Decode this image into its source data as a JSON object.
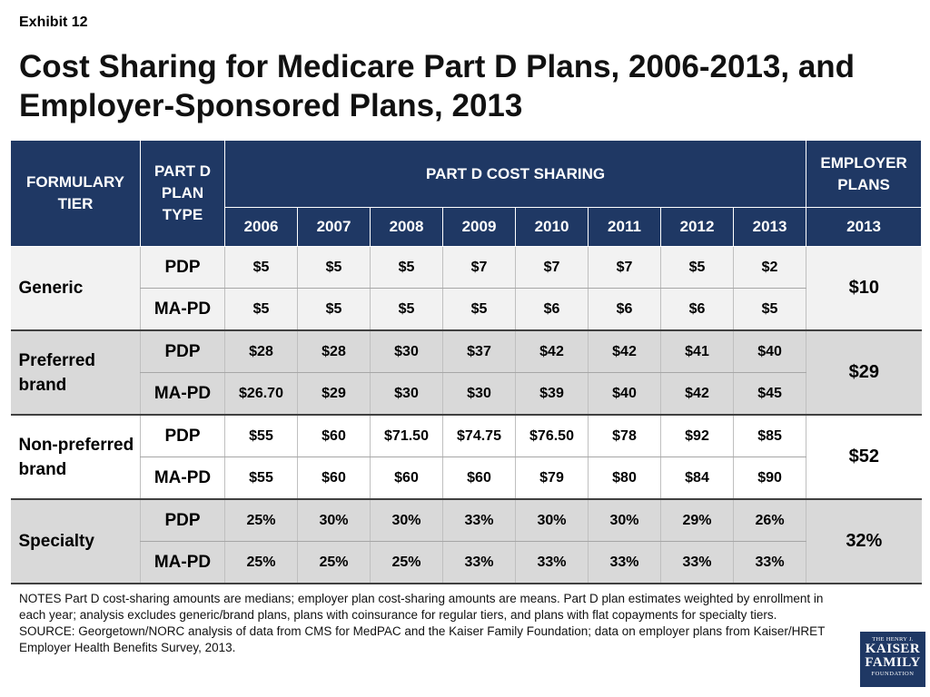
{
  "exhibit": "Exhibit 12",
  "title": "Cost Sharing for Medicare Part D Plans, 2006-2013, and Employer-Sponsored Plans, 2013",
  "table": {
    "headers": {
      "formulary_tier": "FORMULARY TIER",
      "plan_type": "PART D PLAN TYPE",
      "part_d_cost_sharing": "PART D COST SHARING",
      "employer_plans": "EMPLOYER PLANS",
      "years": [
        "2006",
        "2007",
        "2008",
        "2009",
        "2010",
        "2011",
        "2012",
        "2013"
      ],
      "employer_year": "2013"
    },
    "groups": [
      {
        "tier": "Generic",
        "employer": "$10",
        "rows": [
          {
            "type": "PDP",
            "values": [
              "$5",
              "$5",
              "$5",
              "$7",
              "$7",
              "$7",
              "$5",
              "$2"
            ]
          },
          {
            "type": "MA-PD",
            "values": [
              "$5",
              "$5",
              "$5",
              "$5",
              "$6",
              "$6",
              "$6",
              "$5"
            ]
          }
        ]
      },
      {
        "tier": "Preferred brand",
        "employer": "$29",
        "rows": [
          {
            "type": "PDP",
            "values": [
              "$28",
              "$28",
              "$30",
              "$37",
              "$42",
              "$42",
              "$41",
              "$40"
            ]
          },
          {
            "type": "MA-PD",
            "values": [
              "$26.70",
              "$29",
              "$30",
              "$30",
              "$39",
              "$40",
              "$42",
              "$45"
            ]
          }
        ]
      },
      {
        "tier": "Non-preferred brand",
        "employer": "$52",
        "rows": [
          {
            "type": "PDP",
            "values": [
              "$55",
              "$60",
              "$71.50",
              "$74.75",
              "$76.50",
              "$78",
              "$92",
              "$85"
            ]
          },
          {
            "type": "MA-PD",
            "values": [
              "$55",
              "$60",
              "$60",
              "$60",
              "$79",
              "$80",
              "$84",
              "$90"
            ]
          }
        ]
      },
      {
        "tier": "Specialty",
        "employer": "32%",
        "rows": [
          {
            "type": "PDP",
            "values": [
              "25%",
              "30%",
              "30%",
              "33%",
              "30%",
              "30%",
              "29%",
              "26%"
            ]
          },
          {
            "type": "MA-PD",
            "values": [
              "25%",
              "25%",
              "25%",
              "33%",
              "33%",
              "33%",
              "33%",
              "33%"
            ]
          }
        ]
      }
    ]
  },
  "notes": "NOTES Part D cost-sharing amounts are medians; employer plan cost-sharing amounts are means.  Part D plan estimates weighted by enrollment in each year; analysis excludes generic/brand plans, plans with coinsurance for regular tiers, and plans with flat copayments for specialty tiers.",
  "source": "SOURCE: Georgetown/NORC analysis of data from CMS for MedPAC and the Kaiser Family Foundation; data on employer plans from Kaiser/HRET Employer Health Benefits Survey, 2013.",
  "logo": {
    "line1": "THE HENRY J.",
    "line2": "KAISER",
    "line3": "FAMILY",
    "line4": "FOUNDATION"
  }
}
